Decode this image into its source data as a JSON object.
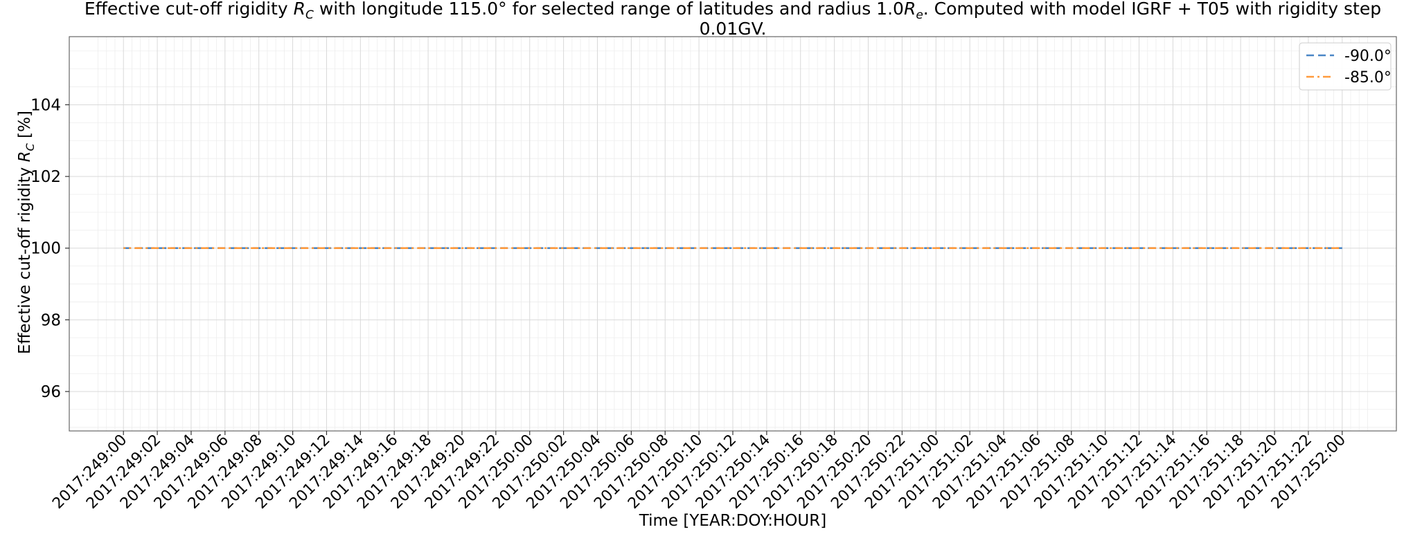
{
  "chart_data": {
    "type": "line",
    "title_line1_parts": [
      "Effective cut-off rigidity ",
      "R",
      "C",
      " with longitude 115.0° for selected range of latitudes and radius 1.0",
      "R",
      "e",
      ". Computed with model IGRF + T05 with rigidity step"
    ],
    "title_line2": "0.01GV.",
    "xlabel": "Time [YEAR:DOY:HOUR]",
    "ylabel_parts": [
      "Effective cut-off rigidity ",
      "R",
      "C",
      " [%]"
    ],
    "x_tick_labels": [
      "2017:249:00",
      "2017:249:02",
      "2017:249:04",
      "2017:249:06",
      "2017:249:08",
      "2017:249:10",
      "2017:249:12",
      "2017:249:14",
      "2017:249:16",
      "2017:249:18",
      "2017:249:20",
      "2017:249:22",
      "2017:250:00",
      "2017:250:02",
      "2017:250:04",
      "2017:250:06",
      "2017:250:08",
      "2017:250:10",
      "2017:250:12",
      "2017:250:14",
      "2017:250:16",
      "2017:250:18",
      "2017:250:20",
      "2017:250:22",
      "2017:251:00",
      "2017:251:02",
      "2017:251:04",
      "2017:251:06",
      "2017:251:08",
      "2017:251:10",
      "2017:251:12",
      "2017:251:14",
      "2017:251:16",
      "2017:251:18",
      "2017:251:20",
      "2017:251:22",
      "2017:252:00"
    ],
    "x_ticks_hours": [
      0,
      2,
      4,
      6,
      8,
      10,
      12,
      14,
      16,
      18,
      20,
      22,
      24,
      26,
      28,
      30,
      32,
      34,
      36,
      38,
      40,
      42,
      44,
      46,
      48,
      50,
      52,
      54,
      56,
      58,
      60,
      62,
      64,
      66,
      68,
      70,
      72
    ],
    "xlim_hours": [
      -3.2,
      75.2
    ],
    "y_ticks": [
      96,
      98,
      100,
      102,
      104
    ],
    "y_tick_labels": [
      "96",
      "98",
      "100",
      "102",
      "104"
    ],
    "ylim": [
      94.9,
      105.9
    ],
    "grid": true,
    "minor_grid": true,
    "legend_position": "top-right",
    "series": [
      {
        "name": "-90.0°",
        "color": "#4a86c6",
        "dash": "dashed",
        "x_hours": [
          0,
          72
        ],
        "y": [
          100,
          100
        ]
      },
      {
        "name": "-85.0°",
        "color": "#ff9a3c",
        "dash": "dashdot",
        "x_hours": [
          0,
          72
        ],
        "y": [
          100,
          100
        ]
      }
    ]
  }
}
